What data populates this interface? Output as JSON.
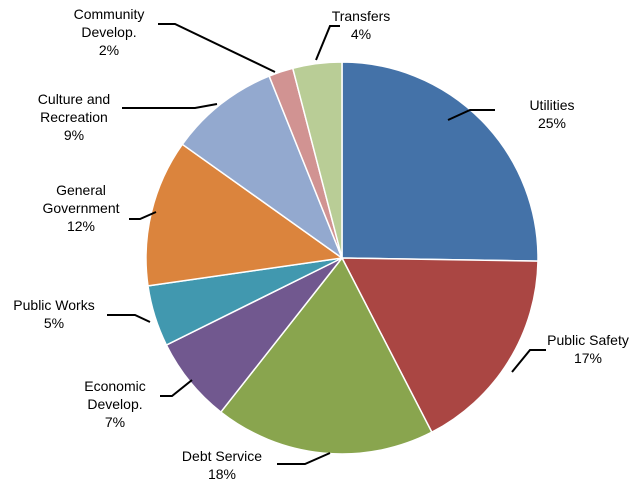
{
  "chart_data": {
    "type": "pie",
    "title": "",
    "start_angle_deg": 0,
    "direction": "clockwise",
    "slices": [
      {
        "name": "Utilities",
        "value": 25,
        "label_lines": [
          "Utilities",
          "25%"
        ],
        "color": "#4472A8"
      },
      {
        "name": "Public Safety",
        "value": 17,
        "label_lines": [
          "Public Safety",
          "17%"
        ],
        "color": "#AA4643"
      },
      {
        "name": "Debt Service",
        "value": 18,
        "label_lines": [
          "Debt Service",
          "18%"
        ],
        "color": "#89A54E"
      },
      {
        "name": "Economic Develop.",
        "value": 7,
        "label_lines": [
          "Economic",
          "Develop.",
          "7%"
        ],
        "color": "#71588F"
      },
      {
        "name": "Public Works",
        "value": 5,
        "label_lines": [
          "Public Works",
          "5%"
        ],
        "color": "#4198AF"
      },
      {
        "name": "General Government",
        "value": 12,
        "label_lines": [
          "General",
          "Government",
          "12%"
        ],
        "color": "#DB843D"
      },
      {
        "name": "Culture and Recreation",
        "value": 9,
        "label_lines": [
          "Culture and",
          "Recreation",
          "9%"
        ],
        "color": "#93A9CF"
      },
      {
        "name": "Community Develop.",
        "value": 2,
        "label_lines": [
          "Community",
          "Develop.",
          "2%"
        ],
        "color": "#D19392"
      },
      {
        "name": "Transfers",
        "value": 4,
        "label_lines": [
          "Transfers",
          "4%"
        ],
        "color": "#B9CD96"
      }
    ]
  }
}
